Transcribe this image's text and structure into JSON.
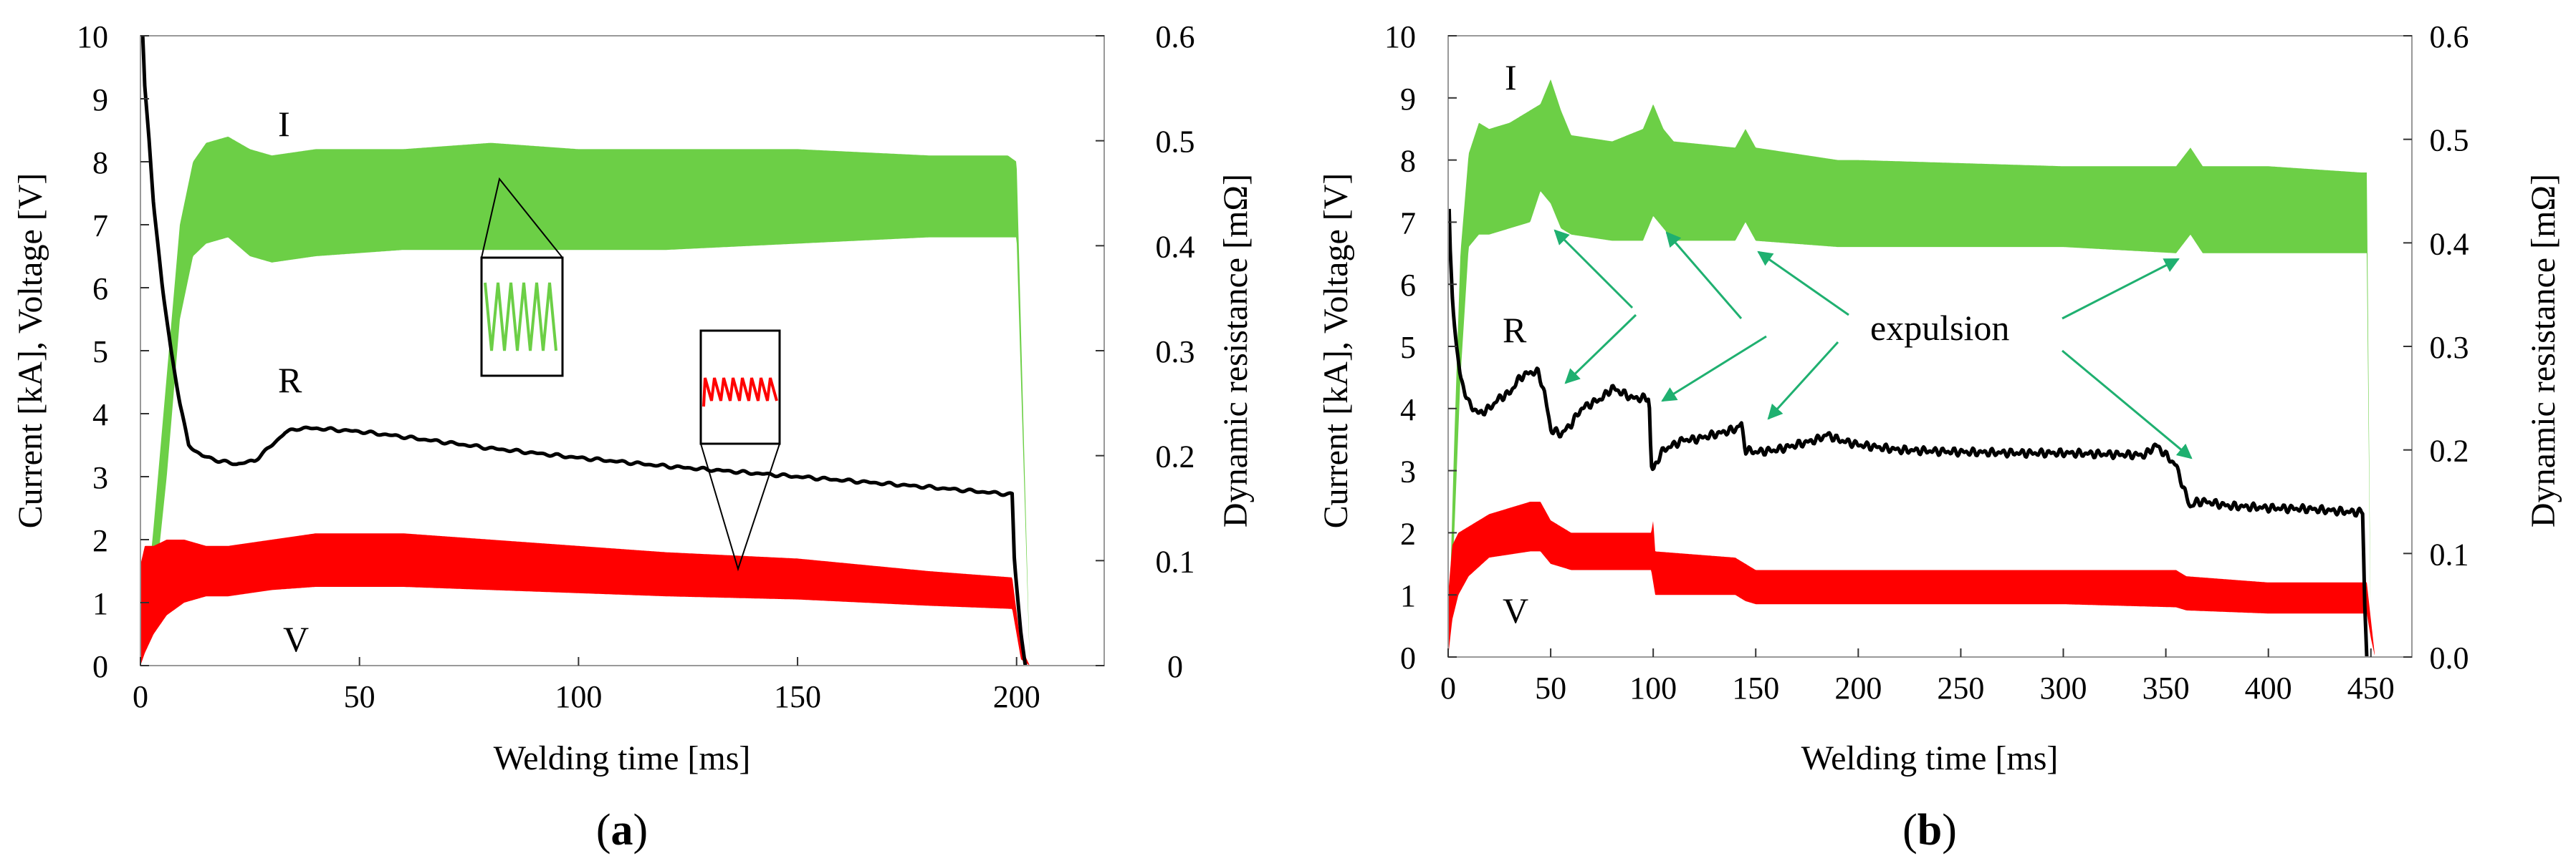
{
  "chart_data": [
    {
      "panel_label": "(a)",
      "type": "line",
      "xlabel": "Welding time  [ms]",
      "ylabel_left": "Current [kA], Voltage [V]",
      "ylabel_right": "Dynamic resistance [mΩ]",
      "xlim": [
        0,
        220
      ],
      "xticks": [
        0,
        50,
        100,
        150,
        200
      ],
      "xtick_labels": [
        "0",
        "50",
        "100",
        "150",
        "200"
      ],
      "ylim_left": [
        0,
        10
      ],
      "yticks_left_labels": [
        "0",
        "1",
        "2",
        "3",
        "4",
        "5",
        "6",
        "7",
        "8",
        "9",
        "10"
      ],
      "ylim_right": [
        0,
        0.6
      ],
      "yticks_right_labels": [
        "0",
        "0.1",
        "0.2",
        "0.3",
        "0.4",
        "0.5",
        "0.6"
      ],
      "series": [
        {
          "name": "I",
          "color": "#6ccf46",
          "axis": "left",
          "kind": "band",
          "x": [
            0,
            3,
            6,
            9,
            12,
            15,
            20,
            25,
            30,
            40,
            60,
            80,
            100,
            120,
            150,
            180,
            198,
            200,
            203
          ],
          "upper": [
            0,
            2.2,
            4.6,
            7.0,
            8.0,
            8.3,
            8.4,
            8.2,
            8.1,
            8.2,
            8.2,
            8.3,
            8.2,
            8.2,
            8.2,
            8.1,
            8.1,
            8.0,
            0
          ],
          "lower": [
            0,
            1.0,
            3.0,
            5.5,
            6.5,
            6.7,
            6.8,
            6.5,
            6.4,
            6.5,
            6.6,
            6.6,
            6.6,
            6.6,
            6.7,
            6.8,
            6.8,
            6.8,
            0
          ]
        },
        {
          "name": "V",
          "color": "#ff0000",
          "axis": "left",
          "kind": "band",
          "x": [
            0,
            1,
            3,
            6,
            10,
            15,
            20,
            30,
            40,
            50,
            60,
            80,
            100,
            120,
            150,
            180,
            199,
            201,
            203
          ],
          "upper": [
            1.6,
            1.9,
            1.9,
            2.0,
            2.0,
            1.9,
            1.9,
            2.0,
            2.1,
            2.1,
            2.1,
            2.0,
            1.9,
            1.8,
            1.7,
            1.5,
            1.4,
            0.3,
            0
          ],
          "lower": [
            0,
            0.2,
            0.5,
            0.8,
            1.0,
            1.1,
            1.1,
            1.2,
            1.25,
            1.25,
            1.25,
            1.2,
            1.15,
            1.1,
            1.05,
            0.95,
            0.9,
            0.1,
            0
          ]
        },
        {
          "name": "R",
          "color": "#000000",
          "axis": "right",
          "kind": "line",
          "x": [
            0.5,
            1,
            2,
            3,
            5,
            7,
            9,
            11,
            14,
            18,
            22,
            26,
            30,
            33,
            36,
            40,
            50,
            60,
            80,
            100,
            120,
            150,
            180,
            199,
            199.5,
            201,
            202
          ],
          "y": [
            0.6,
            0.55,
            0.5,
            0.44,
            0.36,
            0.3,
            0.25,
            0.21,
            0.2,
            0.195,
            0.192,
            0.195,
            0.21,
            0.222,
            0.226,
            0.226,
            0.223,
            0.218,
            0.207,
            0.198,
            0.19,
            0.18,
            0.17,
            0.163,
            0.1,
            0.03,
            0.0
          ]
        }
      ],
      "series_labels": [
        "I",
        "R",
        "V"
      ],
      "insets": [
        "current waveform zoom",
        "voltage waveform zoom"
      ]
    },
    {
      "panel_label": "(b)",
      "type": "line",
      "xlabel": "Welding time  [ms]",
      "ylabel_left": "Current [kA], Voltage [V]",
      "ylabel_right": "Dynamic resistance  [mΩ]",
      "xlim": [
        0,
        470
      ],
      "xticks": [
        0,
        50,
        100,
        150,
        200,
        250,
        300,
        350,
        400,
        450
      ],
      "xtick_labels": [
        "0",
        "50",
        "100",
        "150",
        "200",
        "250",
        "300",
        "350",
        "400",
        "450"
      ],
      "ylim_left": [
        0,
        10
      ],
      "yticks_left_labels": [
        "0",
        "1",
        "2",
        "3",
        "4",
        "5",
        "6",
        "7",
        "8",
        "9",
        "10"
      ],
      "ylim_right": [
        0,
        0.6
      ],
      "yticks_right_labels": [
        "0.0",
        "0.1",
        "0.2",
        "0.3",
        "0.4",
        "0.5",
        "0.6"
      ],
      "series": [
        {
          "name": "I",
          "color": "#6ccf46",
          "axis": "left",
          "kind": "band",
          "x": [
            0,
            3,
            6,
            10,
            15,
            20,
            30,
            40,
            45,
            50,
            55,
            60,
            80,
            95,
            100,
            105,
            110,
            140,
            145,
            150,
            190,
            200,
            300,
            355,
            362,
            368,
            400,
            445,
            448,
            450
          ],
          "upper": [
            0,
            3.5,
            6.5,
            8.1,
            8.6,
            8.5,
            8.6,
            8.8,
            8.9,
            9.3,
            8.8,
            8.4,
            8.3,
            8.5,
            8.9,
            8.5,
            8.3,
            8.2,
            8.5,
            8.2,
            8.0,
            8.0,
            7.9,
            7.9,
            8.2,
            7.9,
            7.9,
            7.8,
            7.8,
            0
          ],
          "lower": [
            0,
            2.0,
            4.5,
            6.6,
            6.8,
            6.8,
            6.9,
            7.0,
            7.5,
            7.3,
            6.9,
            6.8,
            6.7,
            6.7,
            7.1,
            6.9,
            6.7,
            6.7,
            7.0,
            6.7,
            6.6,
            6.6,
            6.6,
            6.5,
            6.8,
            6.5,
            6.5,
            6.5,
            6.5,
            0
          ]
        },
        {
          "name": "V",
          "color": "#ff0000",
          "axis": "left",
          "kind": "band",
          "x": [
            0,
            2,
            5,
            10,
            20,
            40,
            45,
            50,
            60,
            99,
            100,
            101,
            140,
            145,
            150,
            190,
            200,
            300,
            355,
            360,
            400,
            448,
            450,
            452
          ],
          "upper": [
            1.0,
            1.8,
            2.0,
            2.1,
            2.3,
            2.5,
            2.5,
            2.2,
            2.0,
            2.0,
            2.2,
            1.7,
            1.6,
            1.5,
            1.4,
            1.4,
            1.4,
            1.4,
            1.4,
            1.3,
            1.2,
            1.2,
            0.6,
            0
          ],
          "lower": [
            0,
            0.6,
            1.0,
            1.3,
            1.6,
            1.7,
            1.7,
            1.5,
            1.4,
            1.4,
            1.2,
            1.0,
            1.0,
            0.9,
            0.85,
            0.85,
            0.85,
            0.85,
            0.8,
            0.75,
            0.7,
            0.7,
            0.3,
            0
          ]
        },
        {
          "name": "R",
          "color": "#000000",
          "axis": "right",
          "kind": "line",
          "x": [
            0.5,
            1,
            2,
            4,
            6,
            10,
            15,
            20,
            25,
            30,
            35,
            40,
            44,
            47,
            50,
            55,
            60,
            65,
            70,
            75,
            80,
            90,
            98,
            99,
            100,
            102,
            105,
            110,
            115,
            120,
            130,
            140,
            143,
            145,
            150,
            160,
            170,
            180,
            185,
            190,
            200,
            220,
            250,
            280,
            300,
            320,
            340,
            345,
            350,
            355,
            360,
            362,
            365,
            370,
            380,
            400,
            420,
            440,
            446,
            447,
            448
          ],
          "y": [
            0.43,
            0.39,
            0.35,
            0.3,
            0.27,
            0.245,
            0.235,
            0.24,
            0.25,
            0.255,
            0.27,
            0.275,
            0.275,
            0.255,
            0.22,
            0.215,
            0.225,
            0.24,
            0.245,
            0.25,
            0.26,
            0.25,
            0.25,
            0.185,
            0.18,
            0.19,
            0.2,
            0.205,
            0.21,
            0.21,
            0.215,
            0.22,
            0.225,
            0.2,
            0.198,
            0.2,
            0.205,
            0.21,
            0.215,
            0.21,
            0.205,
            0.2,
            0.198,
            0.197,
            0.197,
            0.196,
            0.195,
            0.205,
            0.195,
            0.185,
            0.155,
            0.145,
            0.15,
            0.15,
            0.146,
            0.144,
            0.143,
            0.14,
            0.14,
            0.05,
            0.0
          ]
        }
      ],
      "series_labels": [
        "I",
        "R",
        "V"
      ],
      "annotation": "expulsion"
    }
  ]
}
